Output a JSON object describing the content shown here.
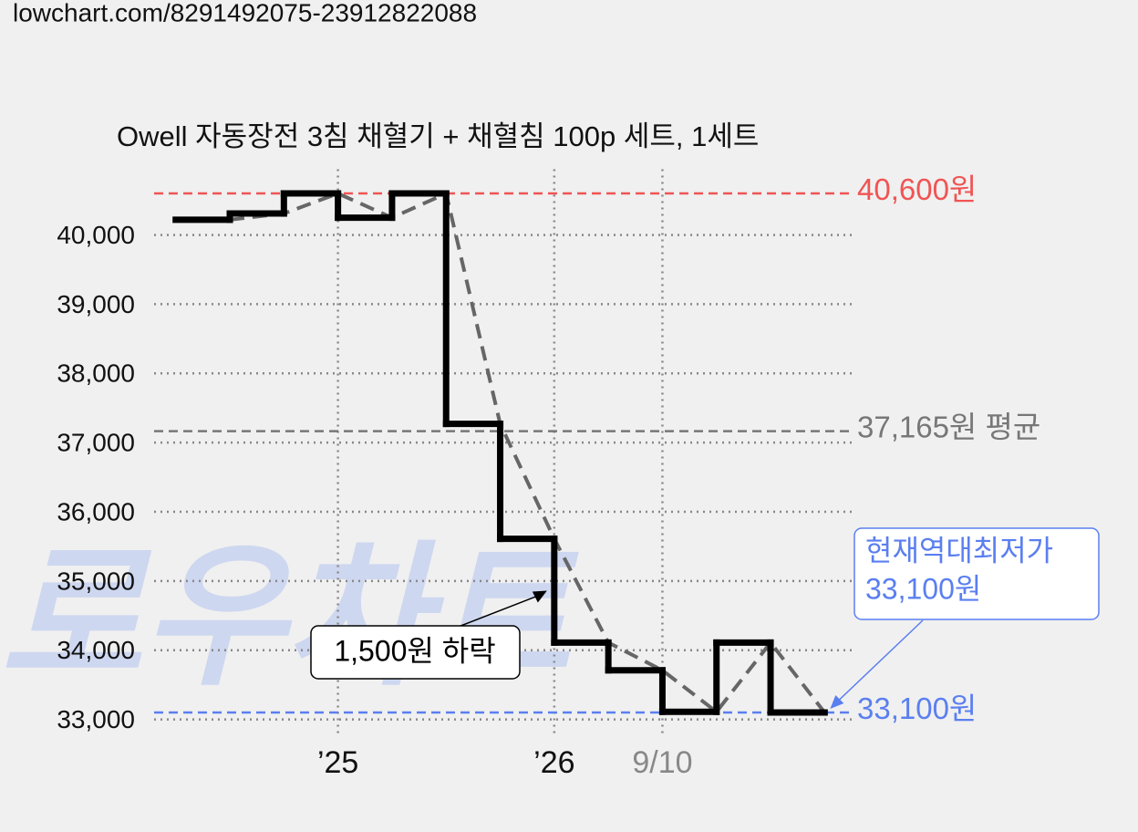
{
  "page_url": "lowchart.com/8291492075-23912822088",
  "chart_data": {
    "type": "step",
    "title": "Owell 자동장전 3침 채혈기 + 채혈침 100p 세트, 1세트",
    "watermark": "로우차트",
    "x": [
      0,
      1,
      2,
      3,
      4,
      5,
      6,
      7,
      8,
      9,
      10,
      11
    ],
    "series": [
      {
        "color": "#000000",
        "values": [
          40220,
          40310,
          40600,
          40250,
          40600,
          37270,
          35610,
          34110,
          33710,
          33110,
          34110,
          33100
        ]
      }
    ],
    "trend_color": "#666666",
    "xlim": [
      -0.4,
      12.5
    ],
    "xticks": [
      {
        "value": 3,
        "label": "’25"
      },
      {
        "value": 7,
        "label": "’26"
      },
      {
        "value": 9,
        "label": "9/10"
      }
    ],
    "ylim": [
      32850,
      40950
    ],
    "yticks": [
      {
        "value": 33000,
        "label": "33,000"
      },
      {
        "value": 34000,
        "label": "34,000"
      },
      {
        "value": 35000,
        "label": "35,000"
      },
      {
        "value": 36000,
        "label": "36,000"
      },
      {
        "value": 37000,
        "label": "37,000"
      },
      {
        "value": 38000,
        "label": "38,000"
      },
      {
        "value": 39000,
        "label": "39,000"
      },
      {
        "value": 40000,
        "label": "40,000"
      }
    ],
    "grid": true,
    "reference_lines": [
      {
        "value": 40600,
        "label": "40,600원",
        "color": "#f05454"
      },
      {
        "value": 37165,
        "label": "37,165원 평균",
        "color": "#777777"
      },
      {
        "value": 33100,
        "label": "33,100원",
        "color": "#5b7ff0"
      }
    ],
    "annotations": [
      {
        "text": "1,500원 하락",
        "color": "#000000"
      },
      {
        "lines": [
          "현재역대최저가",
          "33,100원"
        ],
        "color": "#5b7ff0"
      }
    ]
  }
}
